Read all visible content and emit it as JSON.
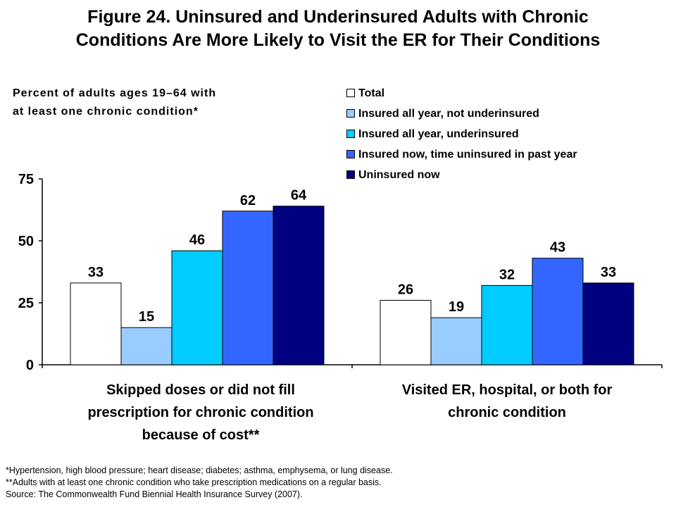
{
  "title_line1": "Figure 24. Uninsured and Underinsured Adults with Chronic",
  "title_line2": "Conditions Are More Likely to Visit the ER for Their Conditions",
  "subtitle_line1": "Percent of adults ages 19–64 with",
  "subtitle_line2": "at least one chronic condition*",
  "footnotes": [
    "*Hypertension, high blood pressure; heart disease; diabetes; asthma, emphysema, or lung disease.",
    "**Adults with at least one chronic condition who take prescription medications on a regular basis.",
    "Source: The Commonwealth Fund Biennial Health Insurance Survey (2007)."
  ],
  "chart_data": {
    "type": "bar",
    "categories": [
      [
        "Skipped doses or did not fill",
        "prescription for chronic condition",
        "because of cost**"
      ],
      [
        "Visited ER, hospital, or both for",
        "chronic condition"
      ]
    ],
    "series": [
      {
        "name": "Total",
        "color": "#ffffff",
        "values": [
          33,
          26
        ]
      },
      {
        "name": "Insured all year, not underinsured",
        "color": "#99ccff",
        "values": [
          15,
          19
        ]
      },
      {
        "name": "Insured all year, underinsured",
        "color": "#00ccff",
        "values": [
          46,
          32
        ]
      },
      {
        "name": "Insured now, time uninsured in past year",
        "color": "#3366ff",
        "values": [
          62,
          43
        ]
      },
      {
        "name": "Uninsured now",
        "color": "#000080",
        "values": [
          64,
          33
        ]
      }
    ],
    "ylim": [
      0,
      75
    ],
    "yticks": [
      0,
      25,
      50,
      75
    ],
    "legend_position": "top-right",
    "grid": false,
    "data_labels": true
  }
}
